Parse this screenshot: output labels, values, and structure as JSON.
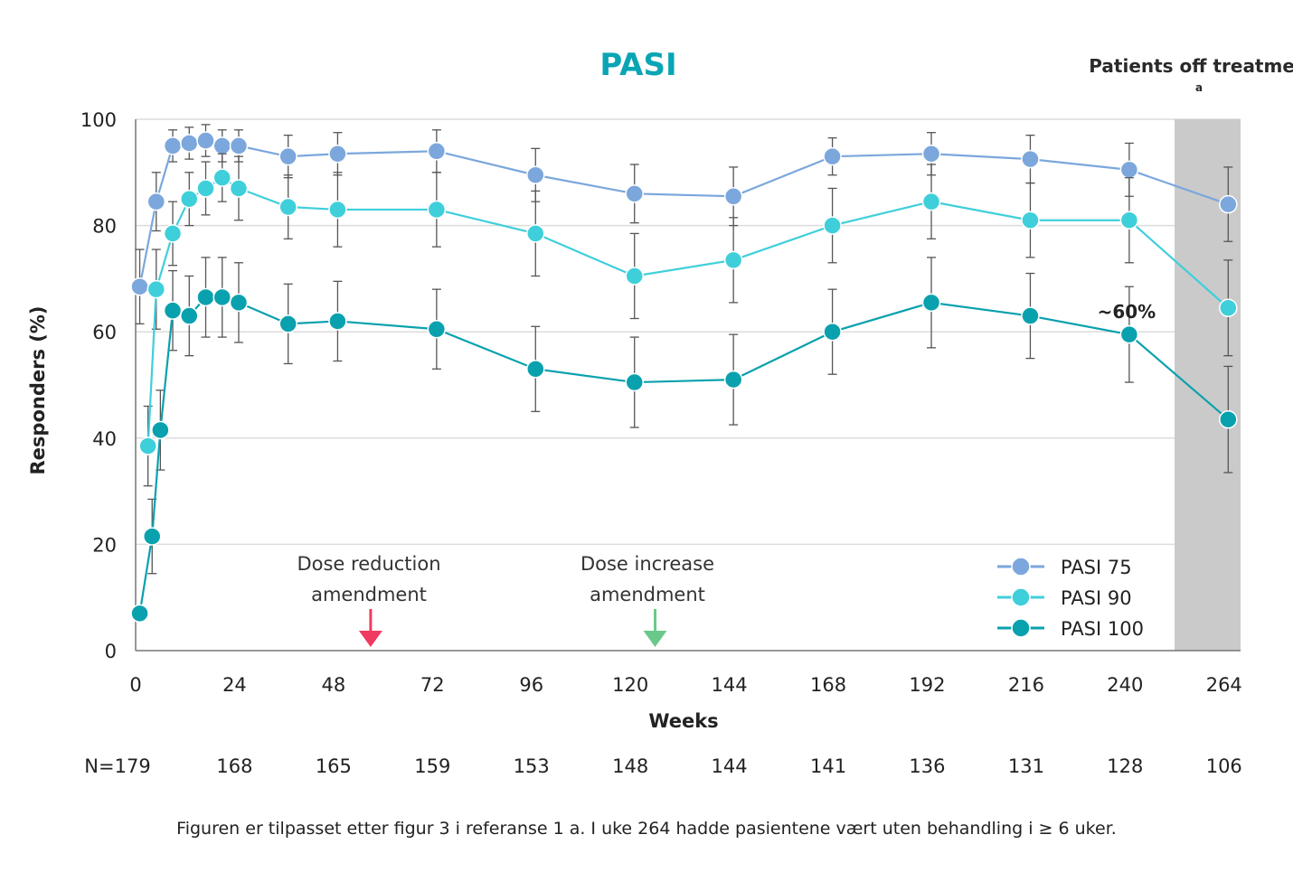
{
  "chart_data": {
    "type": "line",
    "title": "PASI",
    "xlabel": "Weeks",
    "ylabel": "Responders (%)",
    "ylim": [
      0,
      100
    ],
    "yticks": [
      0,
      20,
      40,
      60,
      80,
      100
    ],
    "xticks": [
      0,
      24,
      48,
      72,
      96,
      120,
      144,
      168,
      192,
      216,
      240,
      264
    ],
    "shaded_region": {
      "from_week": 252,
      "to_week": 268,
      "label": "Patients off treatment",
      "label_superscript": "a"
    },
    "series": [
      {
        "name": "PASI 75",
        "color": "#7ba7dc",
        "x": [
          1,
          5,
          9,
          13,
          17,
          21,
          25,
          37,
          49,
          73,
          97,
          121,
          145,
          169,
          193,
          217,
          241,
          265
        ],
        "values": [
          68.5,
          84.5,
          95,
          95.5,
          96,
          95,
          95,
          93,
          93.5,
          94,
          89.5,
          86,
          85.5,
          93,
          93.5,
          92.5,
          90.5,
          84
        ],
        "err": [
          7,
          5.5,
          3,
          3,
          3,
          3,
          3,
          4,
          4,
          4,
          5,
          5.5,
          5.5,
          3.5,
          4,
          4.5,
          5,
          7
        ]
      },
      {
        "name": "PASI 90",
        "color": "#3fcfda",
        "x": [
          3,
          5,
          9,
          13,
          17,
          21,
          25,
          37,
          49,
          73,
          97,
          121,
          145,
          169,
          193,
          217,
          241,
          265
        ],
        "values": [
          38.5,
          68,
          78.5,
          85,
          87,
          89,
          87,
          83.5,
          83,
          83,
          78.5,
          70.5,
          73.5,
          80,
          84.5,
          81,
          81,
          64.5
        ],
        "err": [
          7.5,
          7.5,
          6,
          5,
          5,
          4.5,
          6,
          6,
          7,
          7,
          8,
          8,
          8,
          7,
          7,
          7,
          8,
          9
        ]
      },
      {
        "name": "PASI 100",
        "color": "#0aa1ae",
        "x": [
          1,
          4,
          6,
          9,
          13,
          17,
          21,
          25,
          37,
          49,
          73,
          97,
          121,
          145,
          169,
          193,
          217,
          241,
          265
        ],
        "values": [
          7,
          21.5,
          41.5,
          64,
          63,
          66.5,
          66.5,
          65.5,
          61.5,
          62,
          60.5,
          53,
          50.5,
          51,
          60,
          65.5,
          63,
          59.5,
          43.5
        ],
        "err": [
          0,
          7,
          7.5,
          7.5,
          7.5,
          7.5,
          7.5,
          7.5,
          7.5,
          7.5,
          7.5,
          8,
          8.5,
          8.5,
          8,
          8.5,
          8,
          9,
          10
        ]
      }
    ],
    "annotations": [
      {
        "text_lines": [
          "Dose reduction",
          "amendment"
        ],
        "arrow_week": 57,
        "arrow_color": "#f03a5f"
      },
      {
        "text_lines": [
          "Dose increase",
          "amendment"
        ],
        "arrow_week": 126,
        "arrow_color": "#6ac98a"
      },
      {
        "text": "~60%",
        "week": 241,
        "value": 63
      }
    ],
    "n_at_risk": {
      "label": "N=179",
      "weeks": [
        24,
        48,
        72,
        96,
        120,
        144,
        168,
        192,
        216,
        240,
        264
      ],
      "values": [
        "168",
        "165",
        "159",
        "153",
        "148",
        "144",
        "141",
        "136",
        "131",
        "128",
        "106"
      ]
    },
    "legend_position": "bottom-right"
  },
  "footnote": "Figuren er tilpasset etter figur 3 i referanse 1 a. I uke 264 hadde pasientene vært uten behandling i ≥ 6 uker."
}
